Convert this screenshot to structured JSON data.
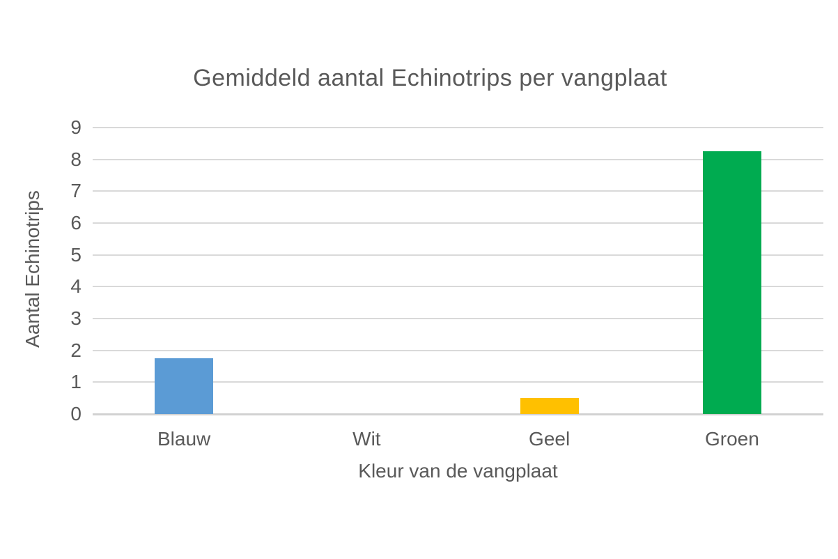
{
  "chart_data": {
    "type": "bar",
    "title": "Gemiddeld aantal Echinotrips per vangplaat",
    "xlabel": "Kleur van de vangplaat",
    "ylabel": "Aantal Echinotrips",
    "categories": [
      "Blauw",
      "Wit",
      "Geel",
      "Groen"
    ],
    "values": [
      1.75,
      0,
      0.5,
      8.25
    ],
    "bar_colors": [
      "#5B9BD5",
      "#FFFFFF",
      "#FFC000",
      "#00AB50"
    ],
    "ylim": [
      0,
      9
    ],
    "yticks": [
      0,
      1,
      2,
      3,
      4,
      5,
      6,
      7,
      8,
      9
    ],
    "grid": true,
    "legend_position": "none",
    "colors": {
      "text": "#595959",
      "gridline": "#D9D9D9",
      "axis_line": "#D2D2D2",
      "background": "#FFFFFF"
    }
  }
}
